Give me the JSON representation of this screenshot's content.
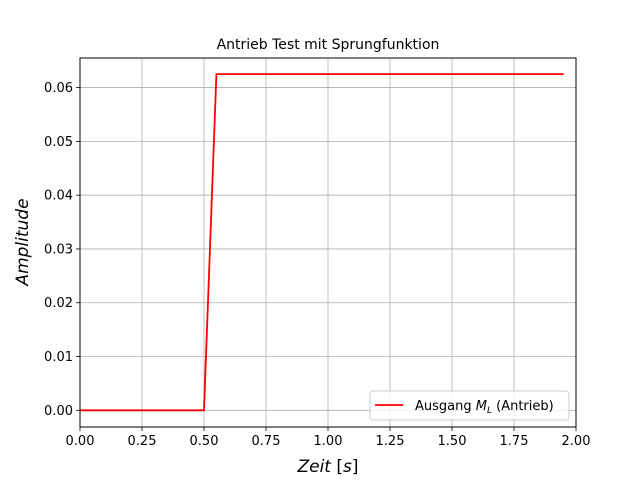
{
  "chart_data": {
    "type": "line",
    "title": "Antrieb Test mit Sprungfunktion",
    "xlabel_parts": [
      "Zeit ",
      "[",
      "s",
      "]"
    ],
    "ylabel": "Amplitude",
    "xlim": [
      0.0,
      2.0
    ],
    "ylim": [
      -0.0031,
      0.0655
    ],
    "grid": true,
    "legend_placement": "lower-right",
    "x_ticks": [
      "0.00",
      "0.25",
      "0.50",
      "0.75",
      "1.00",
      "1.25",
      "1.50",
      "1.75",
      "2.00"
    ],
    "y_ticks": [
      "0.00",
      "0.01",
      "0.02",
      "0.03",
      "0.04",
      "0.05",
      "0.06"
    ],
    "series": [
      {
        "legend": {
          "prefix": "Ausgang ",
          "math_main": "M",
          "math_sub": "L",
          "suffix": " (Antrieb)"
        },
        "color": "#ff0000",
        "x": [
          0.0,
          0.5,
          0.55,
          1.95
        ],
        "y": [
          0.0,
          0.0,
          0.0625,
          0.0625
        ]
      }
    ]
  }
}
